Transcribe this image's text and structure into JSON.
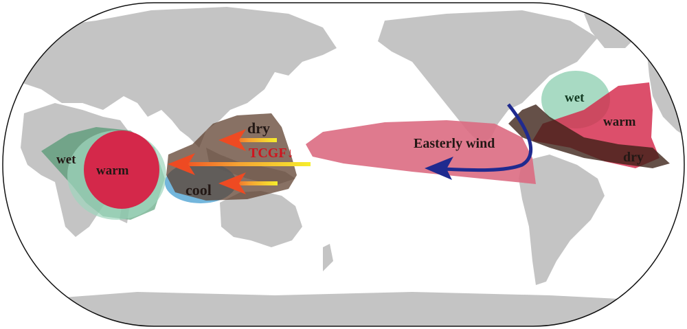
{
  "map": {
    "projection": "Pacific-centered world map",
    "colors": {
      "land": "#c4c4c4",
      "ocean": "#ffffff",
      "wet": "#9fd6bd",
      "warm": "#d4284a",
      "warm_pacific": "#dc6b82",
      "dry": "#5a3a28",
      "cool": "#5aa9d6",
      "easterly_arrow": "#1f2a8f",
      "tcgf": "#d0141e"
    },
    "labels": {
      "africa_wet": "wet",
      "africa_warm": "warm",
      "wnp_dry": "dry",
      "wnp_tcgf": "TCGF",
      "wnp_tcgf_arrow": "↓",
      "wnp_cool": "cool",
      "pacific_wind": "Easterly wind",
      "atlantic_wet": "wet",
      "atlantic_warm": "warm",
      "atlantic_dry": "dry"
    }
  }
}
